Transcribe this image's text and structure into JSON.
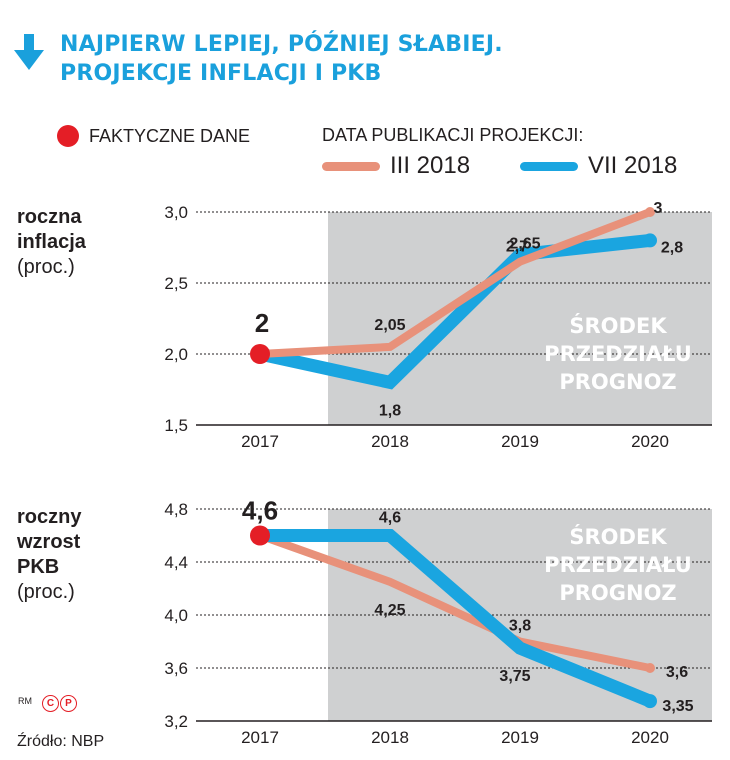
{
  "header": {
    "title_line1": "NAJPIERW LEPIEJ, PÓŹNIEJ SŁABIEJ.",
    "title_line2": "PROJEKCJE INFLACJI I PKB",
    "arrow_icon": "arrow-down-icon",
    "accent_color": "#1aa0dc"
  },
  "legend": {
    "actual_label": "FAKTYCZNE DANE",
    "publication_title": "DATA PUBLIKACJI PROJEKCJI:",
    "series": [
      {
        "label": "III 2018",
        "color": "#e8917a"
      },
      {
        "label": "VII 2018",
        "color": "#1aa5e0"
      }
    ],
    "actual_color": "#e41e26"
  },
  "panels": [
    {
      "label_bold_1": "roczna",
      "label_bold_2": "inflacja",
      "label_unit": "(proc.)"
    },
    {
      "label_bold_1": "roczny",
      "label_bold_2": "wzrost",
      "label_bold_3": "PKB",
      "label_unit": "(proc.)"
    }
  ],
  "band": {
    "line1": "ŚRODEK",
    "line2": "PRZEDZIAŁU",
    "line3": "PROGNOZ",
    "color": "#cfd0d1"
  },
  "footer": {
    "rm": "RM",
    "cp_c": "C",
    "cp_p": "P",
    "source": "Źródło: NBP"
  },
  "chart_data": [
    {
      "type": "line",
      "categories": [
        "2017",
        "2018",
        "2019",
        "2020"
      ],
      "ylim": [
        1.5,
        3.0
      ],
      "yticks": [
        "1,5",
        "2,0",
        "2,5",
        "3,0"
      ],
      "yticks_values": [
        1.5,
        2.0,
        2.5,
        3.0
      ],
      "grid": true,
      "actual": {
        "x": "2017",
        "value": 2.0,
        "label": "2"
      },
      "series": [
        {
          "name": "III 2018",
          "values": [
            2.0,
            2.05,
            2.65,
            3.0
          ],
          "labels": [
            "",
            "2,05",
            "2,65",
            "3"
          ]
        },
        {
          "name": "VII 2018",
          "values": [
            2.0,
            1.8,
            2.7,
            2.8
          ],
          "labels": [
            "",
            "1,8",
            "2,7",
            "2,8"
          ]
        }
      ]
    },
    {
      "type": "line",
      "categories": [
        "2017",
        "2018",
        "2019",
        "2020"
      ],
      "ylim": [
        3.2,
        4.8
      ],
      "yticks": [
        "3,2",
        "3,6",
        "4,0",
        "4,4",
        "4,8"
      ],
      "yticks_values": [
        3.2,
        3.6,
        4.0,
        4.4,
        4.8
      ],
      "grid": true,
      "actual": {
        "x": "2017",
        "value": 4.6,
        "label": "4,6"
      },
      "series": [
        {
          "name": "III 2018",
          "values": [
            4.6,
            4.25,
            3.8,
            3.6
          ],
          "labels": [
            "",
            "4,25",
            "3,8",
            "3,6"
          ]
        },
        {
          "name": "VII 2018",
          "values": [
            4.6,
            4.6,
            3.75,
            3.35
          ],
          "labels": [
            "",
            "4,6",
            "3,75",
            "3,35"
          ]
        }
      ]
    }
  ]
}
